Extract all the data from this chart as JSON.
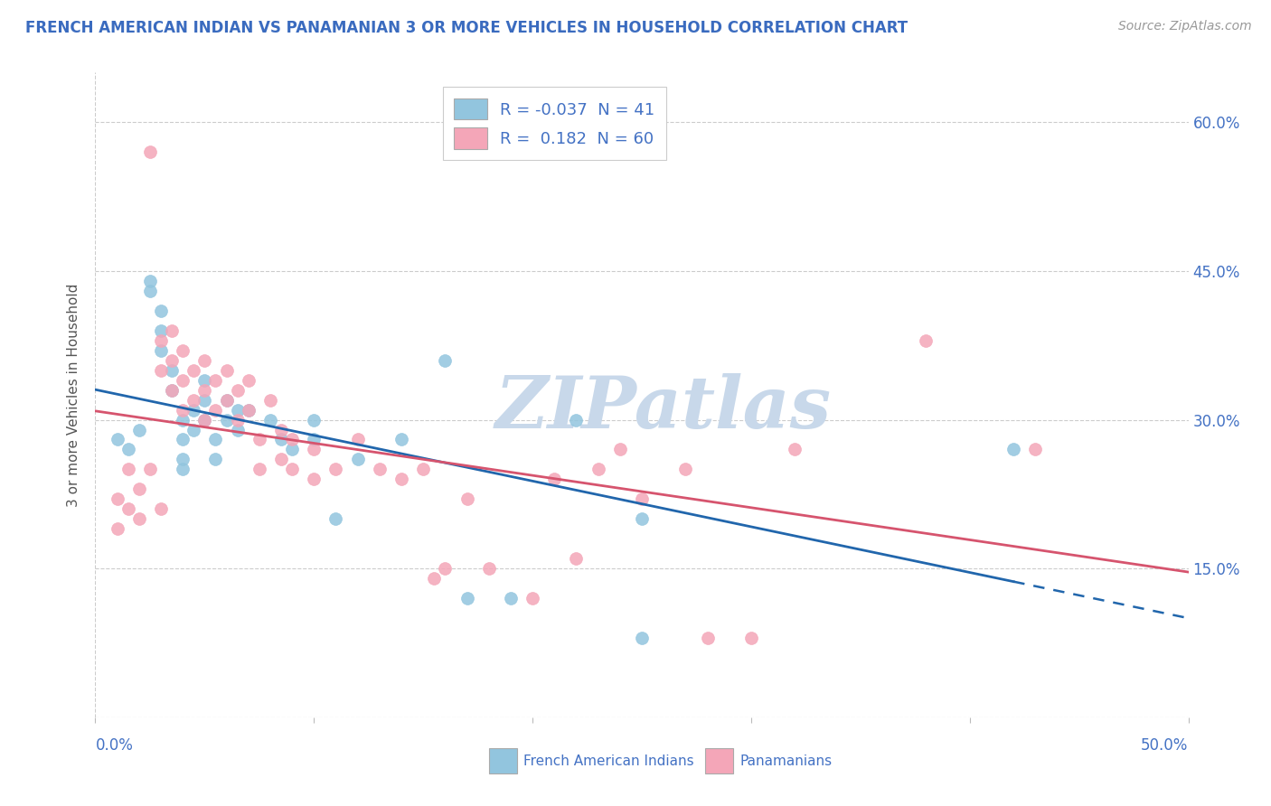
{
  "title": "FRENCH AMERICAN INDIAN VS PANAMANIAN 3 OR MORE VEHICLES IN HOUSEHOLD CORRELATION CHART",
  "source": "Source: ZipAtlas.com",
  "ylabel": "3 or more Vehicles in Household",
  "xmin": 0.0,
  "xmax": 0.5,
  "ymin": 0.0,
  "ymax": 0.65,
  "ytick_vals": [
    0.0,
    0.15,
    0.3,
    0.45,
    0.6
  ],
  "ytick_labels": [
    "",
    "15.0%",
    "30.0%",
    "45.0%",
    "60.0%"
  ],
  "blue_R": -0.037,
  "blue_N": 41,
  "pink_R": 0.182,
  "pink_N": 60,
  "blue_color": "#92c5de",
  "pink_color": "#f4a6b8",
  "blue_line_color": "#2166ac",
  "pink_line_color": "#d6546e",
  "watermark": "ZIPatlas",
  "watermark_color": "#c8d8ea",
  "legend_label_blue": "French American Indians",
  "legend_label_pink": "Panamanians",
  "blue_scatter_x": [
    0.01,
    0.015,
    0.02,
    0.025,
    0.025,
    0.03,
    0.03,
    0.03,
    0.035,
    0.035,
    0.04,
    0.04,
    0.04,
    0.04,
    0.045,
    0.045,
    0.05,
    0.05,
    0.05,
    0.055,
    0.055,
    0.06,
    0.06,
    0.065,
    0.065,
    0.07,
    0.08,
    0.085,
    0.09,
    0.1,
    0.1,
    0.11,
    0.12,
    0.14,
    0.16,
    0.17,
    0.19,
    0.22,
    0.25,
    0.42,
    0.25
  ],
  "blue_scatter_y": [
    0.28,
    0.27,
    0.29,
    0.44,
    0.43,
    0.41,
    0.39,
    0.37,
    0.35,
    0.33,
    0.3,
    0.28,
    0.26,
    0.25,
    0.31,
    0.29,
    0.34,
    0.32,
    0.3,
    0.28,
    0.26,
    0.32,
    0.3,
    0.31,
    0.29,
    0.31,
    0.3,
    0.28,
    0.27,
    0.3,
    0.28,
    0.2,
    0.26,
    0.28,
    0.36,
    0.12,
    0.12,
    0.3,
    0.2,
    0.27,
    0.08
  ],
  "pink_scatter_x": [
    0.01,
    0.01,
    0.015,
    0.015,
    0.02,
    0.02,
    0.025,
    0.025,
    0.03,
    0.03,
    0.03,
    0.035,
    0.035,
    0.035,
    0.04,
    0.04,
    0.04,
    0.045,
    0.045,
    0.05,
    0.05,
    0.05,
    0.055,
    0.055,
    0.06,
    0.06,
    0.065,
    0.065,
    0.07,
    0.07,
    0.075,
    0.075,
    0.08,
    0.085,
    0.085,
    0.09,
    0.09,
    0.1,
    0.1,
    0.11,
    0.12,
    0.13,
    0.14,
    0.15,
    0.155,
    0.16,
    0.17,
    0.18,
    0.2,
    0.21,
    0.22,
    0.23,
    0.24,
    0.25,
    0.27,
    0.28,
    0.3,
    0.32,
    0.38,
    0.43
  ],
  "pink_scatter_y": [
    0.22,
    0.19,
    0.25,
    0.21,
    0.23,
    0.2,
    0.57,
    0.25,
    0.38,
    0.35,
    0.21,
    0.39,
    0.36,
    0.33,
    0.37,
    0.34,
    0.31,
    0.35,
    0.32,
    0.36,
    0.33,
    0.3,
    0.34,
    0.31,
    0.35,
    0.32,
    0.33,
    0.3,
    0.34,
    0.31,
    0.28,
    0.25,
    0.32,
    0.29,
    0.26,
    0.28,
    0.25,
    0.27,
    0.24,
    0.25,
    0.28,
    0.25,
    0.24,
    0.25,
    0.14,
    0.15,
    0.22,
    0.15,
    0.12,
    0.24,
    0.16,
    0.25,
    0.27,
    0.22,
    0.25,
    0.08,
    0.08,
    0.27,
    0.38,
    0.27
  ]
}
